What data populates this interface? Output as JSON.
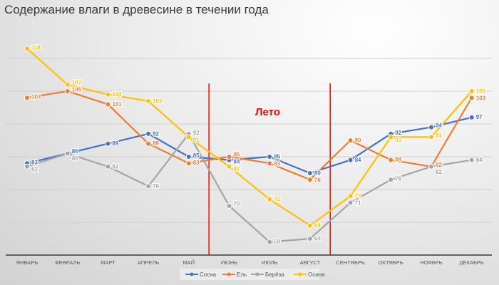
{
  "chart_data": {
    "type": "line",
    "title": "Содержание влаги в  древесине в течении года",
    "categories": [
      "ЯНВАРЬ",
      "ФЕВРАЛЬ",
      "МАРТ",
      "АПРЕЛЬ",
      "МАЙ",
      "ИЮНЬ",
      "ИЮЛЬ",
      "АВГУСТ",
      "СЕНТЯБРЬ",
      "ОКТЯБРЬ",
      "НОЯБРЬ",
      "ДЕКАБРЬ"
    ],
    "series": [
      {
        "name": "Сосна",
        "color": "#4472c4",
        "values": [
          83,
          86,
          89,
          92,
          85,
          84,
          85,
          80,
          84,
          92,
          94,
          97
        ]
      },
      {
        "name": "Ель",
        "color": "#ed7d31",
        "values": [
          103,
          105,
          101,
          89,
          83,
          85,
          83,
          78,
          90,
          84,
          82,
          103
        ]
      },
      {
        "name": "Берёза",
        "color": "#a5a5a5",
        "values": [
          82,
          86,
          82,
          76,
          92,
          70,
          59,
          60,
          71,
          78,
          82,
          84
        ]
      },
      {
        "name": "Осина",
        "color": "#ffc000",
        "values": [
          118,
          107,
          104,
          102,
          91,
          82,
          72,
          64,
          73,
          91,
          91,
          105
        ]
      }
    ],
    "ylim": [
      55,
      125
    ],
    "grid": true,
    "legend": "bottom",
    "annotation": {
      "text": "Лето",
      "from": "ИЮНЬ",
      "to": "АВГУСТ",
      "color": "#ff0000"
    }
  }
}
